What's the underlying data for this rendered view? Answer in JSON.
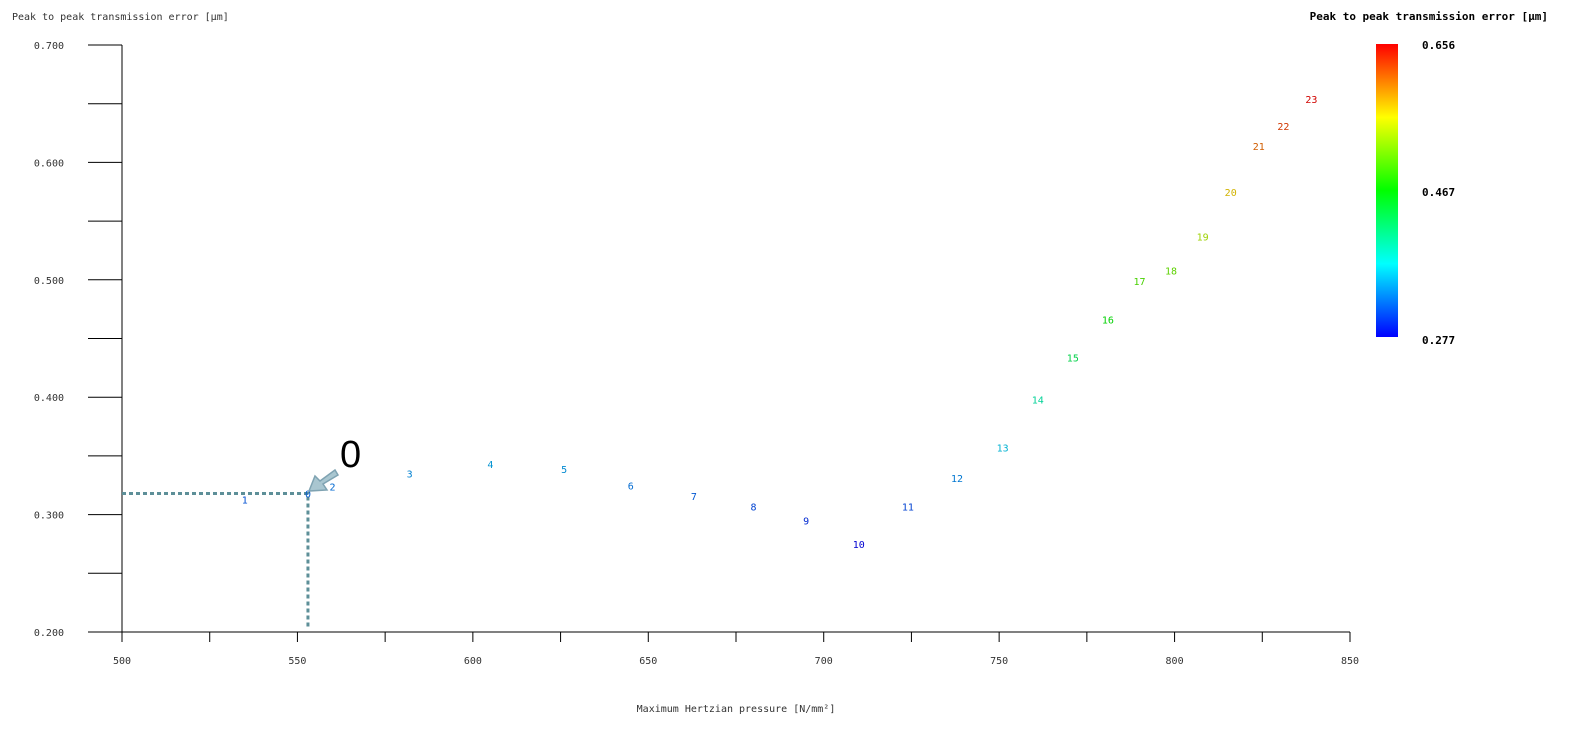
{
  "chart_data": {
    "type": "scatter",
    "title": "",
    "ylabel": "Peak to peak transmission error [μm]",
    "xlabel": "Maximum Hertzian pressure [N/mm²]",
    "xlim": [
      500,
      850
    ],
    "ylim": [
      0.2,
      0.7
    ],
    "xticks": [
      "500",
      "550",
      "600",
      "650",
      "700",
      "750",
      "800",
      "850"
    ],
    "yticks": [
      "0.200",
      "0.300",
      "0.400",
      "0.500",
      "0.600",
      "0.700"
    ],
    "grid": false,
    "points": [
      {
        "label": "0",
        "x": 553,
        "y": 0.318
      },
      {
        "label": "1",
        "x": 535,
        "y": 0.313
      },
      {
        "label": "2",
        "x": 560,
        "y": 0.324
      },
      {
        "label": "3",
        "x": 582,
        "y": 0.335
      },
      {
        "label": "4",
        "x": 605,
        "y": 0.343
      },
      {
        "label": "5",
        "x": 626,
        "y": 0.339
      },
      {
        "label": "6",
        "x": 645,
        "y": 0.325
      },
      {
        "label": "7",
        "x": 663,
        "y": 0.316
      },
      {
        "label": "8",
        "x": 680,
        "y": 0.307
      },
      {
        "label": "9",
        "x": 695,
        "y": 0.295
      },
      {
        "label": "10",
        "x": 710,
        "y": 0.275
      },
      {
        "label": "11",
        "x": 724,
        "y": 0.307
      },
      {
        "label": "12",
        "x": 738,
        "y": 0.331
      },
      {
        "label": "13",
        "x": 751,
        "y": 0.357
      },
      {
        "label": "14",
        "x": 761,
        "y": 0.398
      },
      {
        "label": "15",
        "x": 771,
        "y": 0.434
      },
      {
        "label": "16",
        "x": 781,
        "y": 0.466
      },
      {
        "label": "17",
        "x": 790,
        "y": 0.499
      },
      {
        "label": "18",
        "x": 799,
        "y": 0.508
      },
      {
        "label": "19",
        "x": 808,
        "y": 0.537
      },
      {
        "label": "20",
        "x": 816,
        "y": 0.575
      },
      {
        "label": "21",
        "x": 824,
        "y": 0.614
      },
      {
        "label": "22",
        "x": 831,
        "y": 0.631
      },
      {
        "label": "23",
        "x": 839,
        "y": 0.654
      }
    ],
    "highlight": {
      "label": "0",
      "x": 553,
      "y": 0.318
    },
    "colorbar": {
      "title": "Peak to peak transmission error [μm]",
      "min": 0.277,
      "max": 0.656,
      "labels": [
        "0.656",
        "0.467",
        "0.277"
      ]
    }
  }
}
